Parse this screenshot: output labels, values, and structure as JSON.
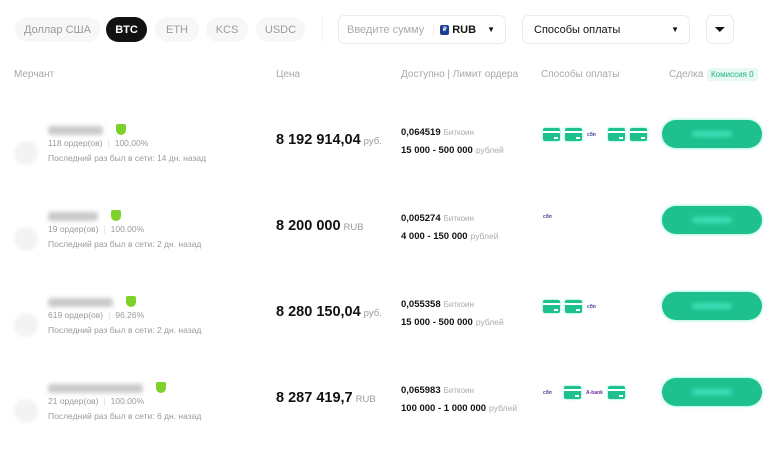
{
  "currency_tabs": [
    {
      "label": "Доллар США",
      "active": false
    },
    {
      "label": "BTC",
      "active": true
    },
    {
      "label": "ETH",
      "active": false
    },
    {
      "label": "KCS",
      "active": false
    },
    {
      "label": "USDC",
      "active": false
    }
  ],
  "amount_input": {
    "placeholder": "Введите сумму",
    "currency": "RUB"
  },
  "payment_select": {
    "label": "Способы оплаты"
  },
  "columns": {
    "merchant": "Мерчант",
    "price": "Цена",
    "available": "Доступно | Лимит ордера",
    "methods": "Способы оплаты",
    "deal": "Сделка",
    "commission": "Комиссия 0"
  },
  "accent": "#1ec08e",
  "rows": [
    {
      "orders": "118 ордер(ов)",
      "rate": "100,00%",
      "last_seen": "Последний раз был в сети: 14 дн. назад",
      "price": "8 192 914,04",
      "price_unit": "руб.",
      "available": "0,064519",
      "available_unit": "Биткоин",
      "limit": "15 000 - 500 000",
      "limit_unit": "рублей",
      "methods": [
        "card",
        "card",
        "sbp",
        "card",
        "card"
      ]
    },
    {
      "orders": "19 ордер(ов)",
      "rate": "100.00%",
      "last_seen": "Последний раз был в сети: 2 дн. назад",
      "price": "8 200 000",
      "price_unit": "RUB",
      "available": "0,005274",
      "available_unit": "Биткоин",
      "limit": "4 000 - 150 000",
      "limit_unit": "рублей",
      "methods": [
        "sbp"
      ]
    },
    {
      "orders": "619 ордер(ов)",
      "rate": "96.26%",
      "last_seen": "Последний раз был в сети: 2 дн. назад",
      "price": "8 280 150,04",
      "price_unit": "руб.",
      "available": "0,055358",
      "available_unit": "Биткоин",
      "limit": "15 000 - 500 000",
      "limit_unit": "рублей",
      "methods": [
        "card",
        "card",
        "sbp"
      ]
    },
    {
      "orders": "21 ордер(ов)",
      "rate": "100.00%",
      "last_seen": "Последний раз был в сети: 6 дн. назад",
      "price": "8 287 419,7",
      "price_unit": "RUB",
      "available": "0,065983",
      "available_unit": "Биткоин",
      "limit": "100 000 - 1 000 000",
      "limit_unit": "рублей",
      "methods": [
        "sbp",
        "card",
        "abank",
        "card"
      ]
    }
  ],
  "method_labels": {
    "sbp": "сбп",
    "abank": "A-bank"
  }
}
